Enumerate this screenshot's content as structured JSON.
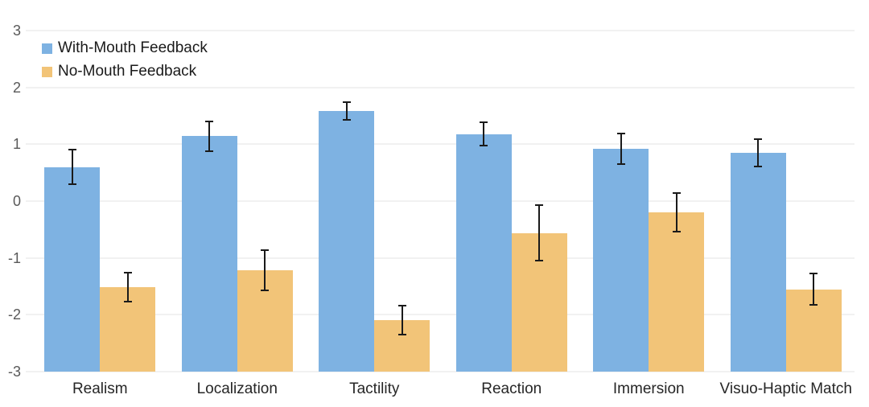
{
  "chart_data": {
    "type": "bar",
    "title": "",
    "xlabel": "",
    "ylabel": "",
    "categories": [
      "Realism",
      "Localization",
      "Tactility",
      "Reaction",
      "Immersion",
      "Visuo-Haptic Match"
    ],
    "series": [
      {
        "name": "With-Mouth Feedback",
        "color": "#7EB2E2",
        "values": [
          0.6,
          1.14,
          1.58,
          1.18,
          0.92,
          0.85
        ],
        "errors": [
          0.32,
          0.28,
          0.17,
          0.22,
          0.28,
          0.26
        ]
      },
      {
        "name": "No-Mouth Feedback",
        "color": "#F2C478",
        "values": [
          -1.51,
          -1.22,
          -2.1,
          -0.56,
          -0.2,
          -1.55
        ],
        "errors": [
          0.27,
          0.37,
          0.27,
          0.5,
          0.35,
          0.29
        ]
      }
    ],
    "y_ticks": [
      "3",
      "2",
      "1",
      "0",
      "-1",
      "-2",
      "-3"
    ],
    "y_tick_values": [
      3,
      2,
      1,
      0,
      -1,
      -2,
      -3
    ],
    "ylim": [
      -3,
      3
    ],
    "bar_baseline": -3,
    "grid": true,
    "legend_position": "top-left",
    "error_bar_color": "#1a1a1a",
    "gridline_color": "#f1f1f1",
    "axis_tick_color": "#595959",
    "category_label_color": "#262626",
    "background_color": "#ffffff"
  }
}
